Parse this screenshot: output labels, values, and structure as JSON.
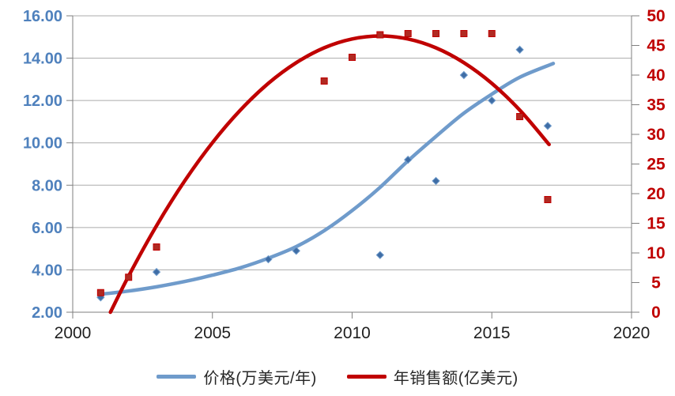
{
  "chart_data": {
    "type": "scatter",
    "title": "",
    "grid": "horizontal",
    "legend_position": "bottom",
    "x_axis": {
      "min": 2000,
      "max": 2020,
      "tick_step": 5,
      "tick_labels": [
        "2000",
        "2005",
        "2010",
        "2015",
        "2020"
      ],
      "label_color": "#1f1f1f"
    },
    "y_axis_left": {
      "min": 2,
      "max": 16,
      "tick_step": 2,
      "tick_labels": [
        "2.00",
        "4.00",
        "6.00",
        "8.00",
        "10.00",
        "12.00",
        "14.00",
        "16.00"
      ],
      "label_color": "#4F81BD"
    },
    "y_axis_right": {
      "min": 0,
      "max": 50,
      "tick_step": 5,
      "tick_labels": [
        "0",
        "5",
        "10",
        "15",
        "20",
        "25",
        "30",
        "35",
        "40",
        "45",
        "50"
      ],
      "label_color": "#C00000"
    },
    "series": [
      {
        "name": "价格(万美元/年)",
        "axis": "left",
        "marker": "diamond",
        "line_color": "#6F9BCB",
        "marker_color": "#3F6DA5",
        "points": [
          [
            2001,
            2.7
          ],
          [
            2003,
            3.9
          ],
          [
            2007,
            4.5
          ],
          [
            2008,
            4.9
          ],
          [
            2011,
            4.7
          ],
          [
            2012,
            9.2
          ],
          [
            2013,
            8.2
          ],
          [
            2014,
            13.2
          ],
          [
            2015,
            12.0
          ],
          [
            2016,
            14.4
          ],
          [
            2017,
            10.8
          ]
        ],
        "trend": [
          [
            2001,
            2.85
          ],
          [
            2002,
            3.0
          ],
          [
            2003,
            3.2
          ],
          [
            2004,
            3.45
          ],
          [
            2005,
            3.75
          ],
          [
            2006,
            4.1
          ],
          [
            2007,
            4.55
          ],
          [
            2008,
            5.1
          ],
          [
            2009,
            5.85
          ],
          [
            2010,
            6.8
          ],
          [
            2011,
            7.9
          ],
          [
            2012,
            9.15
          ],
          [
            2013,
            10.3
          ],
          [
            2014,
            11.4
          ],
          [
            2015,
            12.3
          ],
          [
            2016,
            13.1
          ],
          [
            2017.2,
            13.75
          ]
        ]
      },
      {
        "name": "年销售额(亿美元)",
        "axis": "right",
        "marker": "square",
        "line_color": "#C00000",
        "marker_color": "#B02A22",
        "points": [
          [
            2001,
            3.3
          ],
          [
            2002,
            5.9
          ],
          [
            2003,
            11.0
          ],
          [
            2009,
            39.0
          ],
          [
            2010,
            43.0
          ],
          [
            2011,
            46.8
          ],
          [
            2012,
            47.0
          ],
          [
            2013,
            47.0
          ],
          [
            2014,
            47.0
          ],
          [
            2015,
            47.0
          ],
          [
            2016,
            33.0
          ],
          [
            2017,
            19.0
          ]
        ],
        "trend": [
          [
            2001.35,
            0
          ],
          [
            2002,
            6.1
          ],
          [
            2003,
            14.6
          ],
          [
            2004,
            22.1
          ],
          [
            2005,
            28.6
          ],
          [
            2006,
            34.1
          ],
          [
            2007,
            38.6
          ],
          [
            2008,
            42.1
          ],
          [
            2009,
            44.6
          ],
          [
            2010,
            46.1
          ],
          [
            2011,
            46.6
          ],
          [
            2012,
            46.1
          ],
          [
            2013,
            44.6
          ],
          [
            2014,
            42.1
          ],
          [
            2015,
            38.6
          ],
          [
            2016,
            34.1
          ],
          [
            2017.05,
            28.3
          ]
        ]
      }
    ]
  },
  "colors": {
    "background": "#FFFFFF",
    "gridline": "#ABABAB",
    "axis_line": "#7F7F7F"
  }
}
